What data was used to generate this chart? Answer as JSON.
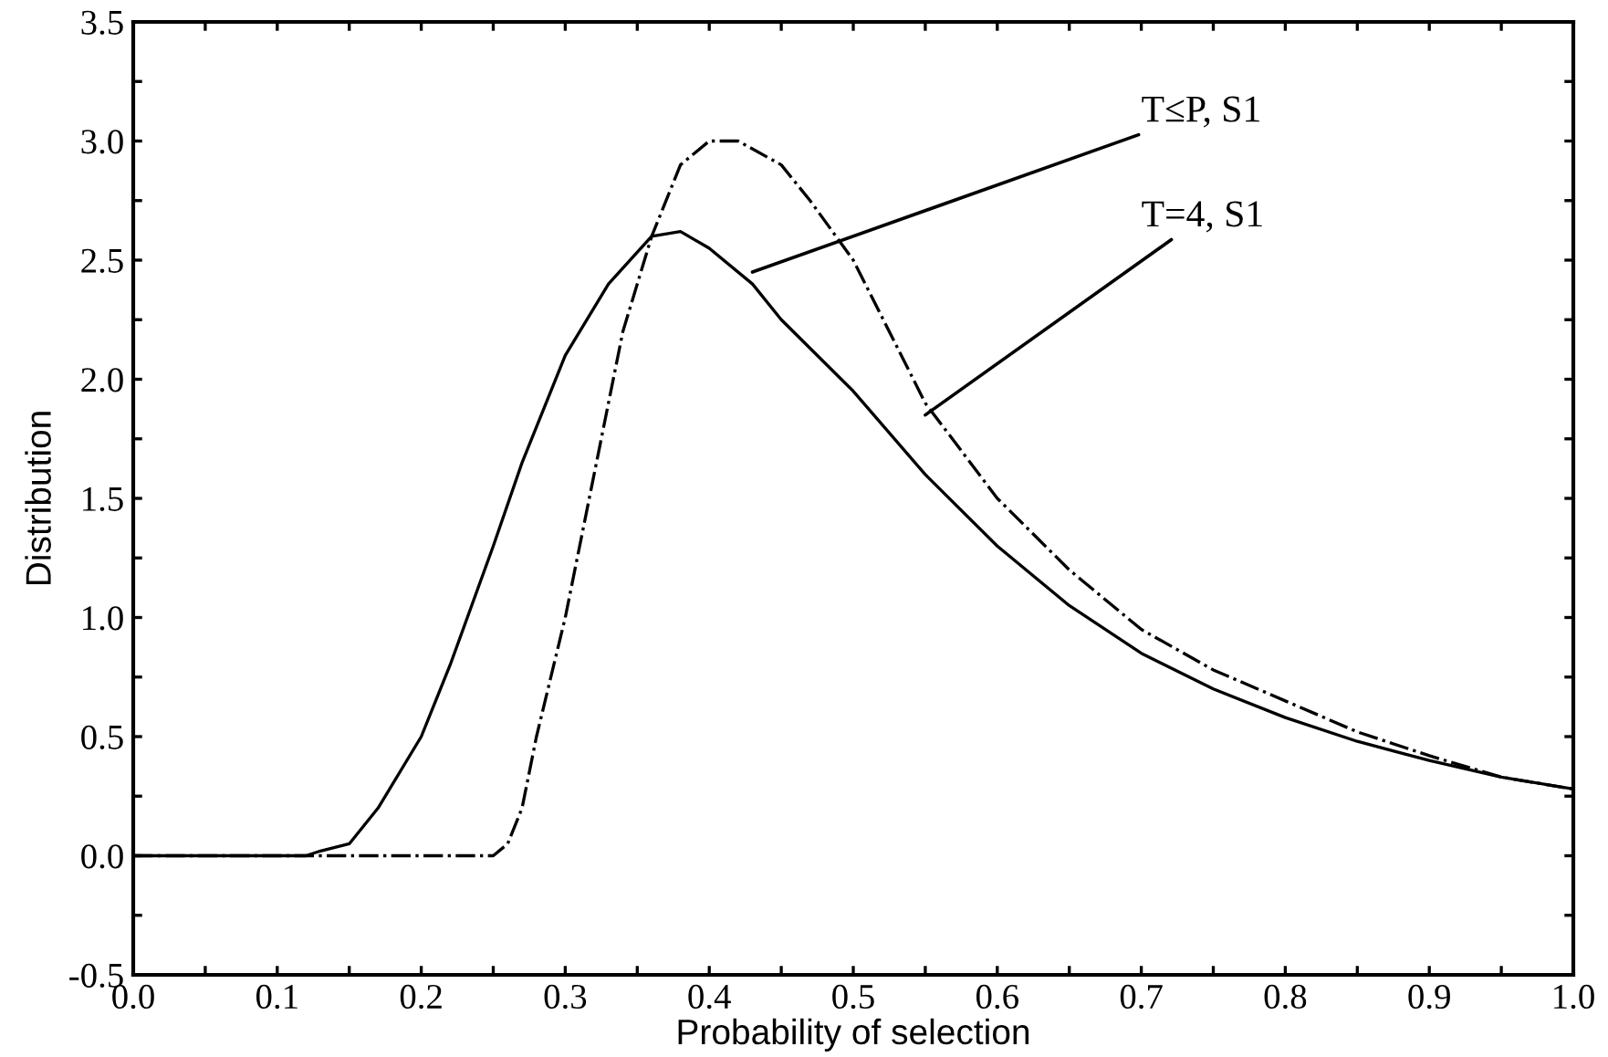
{
  "chart_data": {
    "type": "line",
    "xlabel": "Probability of selection",
    "ylabel": "Distribution",
    "series": [
      {
        "color": "#000000",
        "line_style": "solid",
        "x": [
          0.0,
          0.12,
          0.13,
          0.15,
          0.17,
          0.2,
          0.22,
          0.25,
          0.27,
          0.3,
          0.33,
          0.36,
          0.38,
          0.4,
          0.43,
          0.45,
          0.5,
          0.55,
          0.6,
          0.65,
          0.7,
          0.75,
          0.8,
          0.85,
          0.9,
          0.95,
          1.0
        ],
        "values": [
          0.0,
          0.0,
          0.02,
          0.05,
          0.2,
          0.5,
          0.8,
          1.3,
          1.65,
          2.1,
          2.4,
          2.6,
          2.62,
          2.55,
          2.4,
          2.25,
          1.95,
          1.6,
          1.3,
          1.05,
          0.85,
          0.7,
          0.58,
          0.48,
          0.4,
          0.33,
          0.28
        ]
      },
      {
        "color": "#000000",
        "line_style": "dashdot",
        "x": [
          0.0,
          0.25,
          0.26,
          0.27,
          0.28,
          0.3,
          0.32,
          0.34,
          0.36,
          0.38,
          0.4,
          0.42,
          0.45,
          0.47,
          0.5,
          0.55,
          0.6,
          0.65,
          0.7,
          0.75,
          0.8,
          0.85,
          0.9,
          0.95,
          1.0
        ],
        "values": [
          0.0,
          0.0,
          0.05,
          0.2,
          0.5,
          1.0,
          1.6,
          2.2,
          2.6,
          2.9,
          3.0,
          3.0,
          2.9,
          2.75,
          2.5,
          1.9,
          1.5,
          1.2,
          0.95,
          0.78,
          0.65,
          0.52,
          0.42,
          0.33,
          0.28
        ]
      }
    ],
    "annotations": [
      {
        "text": "T≤P, S1",
        "x": 0.43,
        "y": 2.45
      },
      {
        "text": "T=4, S1",
        "x": 0.55,
        "y": 1.85
      }
    ],
    "xlim": [
      0.0,
      1.0
    ],
    "ylim": [
      -0.5,
      3.5
    ],
    "xticks": [
      {
        "value": 0.0,
        "label": "0.0"
      },
      {
        "value": 0.05,
        "label": null
      },
      0.1,
      {
        "value": 0.15,
        "label": null
      },
      0.2,
      {
        "value": 0.25,
        "label": null
      },
      0.3,
      {
        "value": 0.35,
        "label": null
      },
      0.4,
      {
        "value": 0.45,
        "label": null
      },
      0.5,
      {
        "value": 0.55,
        "label": null
      },
      0.6,
      {
        "value": 0.65,
        "label": null
      },
      0.7,
      {
        "value": 0.75,
        "label": null
      },
      0.8,
      {
        "value": 0.85,
        "label": null
      },
      0.9,
      {
        "value": 0.95,
        "label": null
      },
      {
        "value": 1.0,
        "label": "1.0"
      }
    ],
    "yticks": [
      -0.5,
      {
        "value": -0.25,
        "label": null
      },
      {
        "value": 0.0,
        "label": "0.0"
      },
      {
        "value": 0.25,
        "label": null
      },
      0.5,
      {
        "value": 0.75,
        "label": null
      },
      {
        "value": 1.0,
        "label": "1.0"
      },
      {
        "value": 1.25,
        "label": null
      },
      1.5,
      {
        "value": 1.75,
        "label": null
      },
      {
        "value": 2.0,
        "label": "2.0"
      },
      {
        "value": 2.25,
        "label": null
      },
      2.5,
      {
        "value": 2.75,
        "label": null
      },
      {
        "value": 3.0,
        "label": "3.0"
      },
      {
        "value": 3.25,
        "label": null
      },
      3.5
    ],
    "grid": false,
    "legend": false,
    "marker": "none"
  }
}
